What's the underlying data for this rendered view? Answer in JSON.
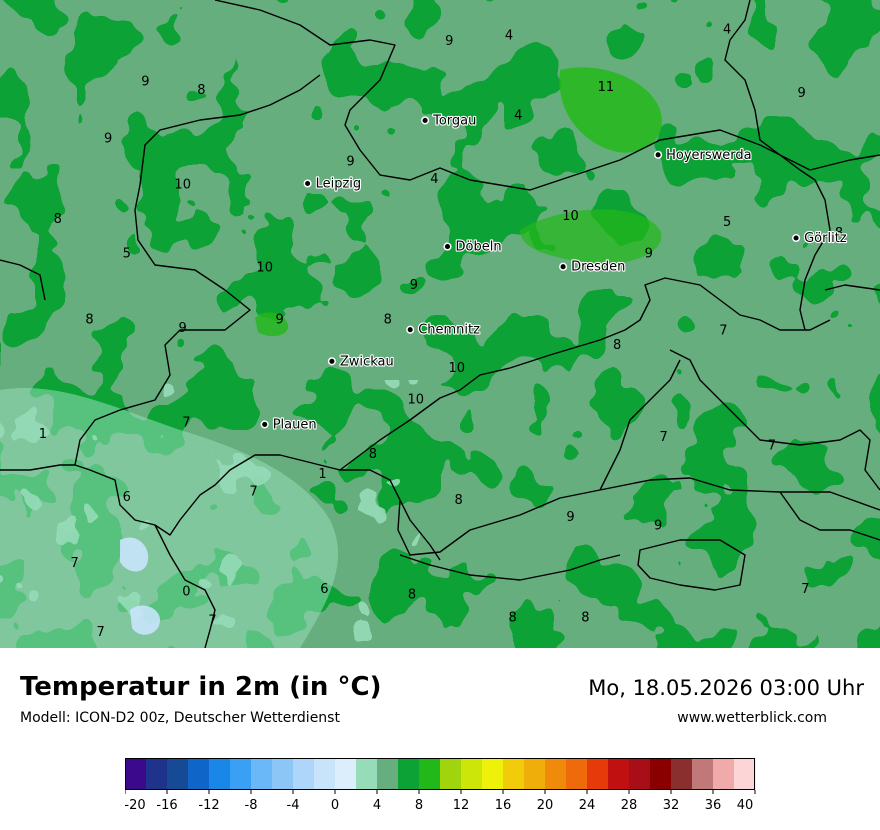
{
  "map": {
    "cities": [
      {
        "name": "Torgau",
        "lon": 13.0,
        "lat": 51.56
      },
      {
        "name": "Leipzig",
        "lon": 12.37,
        "lat": 51.34
      },
      {
        "name": "Hoyerswerda",
        "lon": 14.25,
        "lat": 51.44
      },
      {
        "name": "Görlitz",
        "lon": 14.99,
        "lat": 51.15
      },
      {
        "name": "Döbeln",
        "lon": 13.12,
        "lat": 51.12
      },
      {
        "name": "Dresden",
        "lon": 13.74,
        "lat": 51.05
      },
      {
        "name": "Chemnitz",
        "lon": 12.92,
        "lat": 50.83
      },
      {
        "name": "Zwickau",
        "lon": 12.5,
        "lat": 50.72
      },
      {
        "name": "Plauen",
        "lon": 12.14,
        "lat": 50.5
      }
    ],
    "temperature_labels": [
      {
        "value": "4",
        "lon": 13.45,
        "lat": 51.86
      },
      {
        "value": "9",
        "lon": 13.13,
        "lat": 51.84
      },
      {
        "value": "4",
        "lon": 14.62,
        "lat": 51.88
      },
      {
        "value": "9",
        "lon": 15.02,
        "lat": 51.66
      },
      {
        "value": "9",
        "lon": 11.5,
        "lat": 51.7
      },
      {
        "value": "8",
        "lon": 11.8,
        "lat": 51.67
      },
      {
        "value": "11",
        "lon": 13.97,
        "lat": 51.68
      },
      {
        "value": "4",
        "lon": 13.5,
        "lat": 51.58
      },
      {
        "value": "9",
        "lon": 11.3,
        "lat": 51.5
      },
      {
        "value": "9",
        "lon": 12.6,
        "lat": 51.42
      },
      {
        "value": "4",
        "lon": 13.05,
        "lat": 51.36
      },
      {
        "value": "10",
        "lon": 11.7,
        "lat": 51.34
      },
      {
        "value": "8",
        "lon": 11.03,
        "lat": 51.22
      },
      {
        "value": "10",
        "lon": 13.78,
        "lat": 51.23
      },
      {
        "value": "5",
        "lon": 14.62,
        "lat": 51.21
      },
      {
        "value": "8",
        "lon": 15.22,
        "lat": 51.17
      },
      {
        "value": "5",
        "lon": 11.4,
        "lat": 51.1
      },
      {
        "value": "9",
        "lon": 14.2,
        "lat": 51.1
      },
      {
        "value": "10",
        "lon": 12.14,
        "lat": 51.05
      },
      {
        "value": "9",
        "lon": 12.94,
        "lat": 50.99
      },
      {
        "value": "8",
        "lon": 11.2,
        "lat": 50.87
      },
      {
        "value": "9",
        "lon": 11.7,
        "lat": 50.84
      },
      {
        "value": "9",
        "lon": 12.22,
        "lat": 50.87
      },
      {
        "value": "8",
        "lon": 12.8,
        "lat": 50.87
      },
      {
        "value": "7",
        "lon": 14.6,
        "lat": 50.83
      },
      {
        "value": "8",
        "lon": 14.03,
        "lat": 50.78
      },
      {
        "value": "10",
        "lon": 13.17,
        "lat": 50.7
      },
      {
        "value": "10",
        "lon": 12.95,
        "lat": 50.59
      },
      {
        "value": "7",
        "lon": 11.72,
        "lat": 50.51
      },
      {
        "value": "1",
        "lon": 10.95,
        "lat": 50.47
      },
      {
        "value": "7",
        "lon": 14.28,
        "lat": 50.46
      },
      {
        "value": "7",
        "lon": 14.86,
        "lat": 50.43
      },
      {
        "value": "8",
        "lon": 12.72,
        "lat": 50.4
      },
      {
        "value": "1",
        "lon": 12.45,
        "lat": 50.33
      },
      {
        "value": "7",
        "lon": 12.08,
        "lat": 50.27
      },
      {
        "value": "6",
        "lon": 11.4,
        "lat": 50.25
      },
      {
        "value": "8",
        "lon": 13.18,
        "lat": 50.24
      },
      {
        "value": "9",
        "lon": 13.78,
        "lat": 50.18
      },
      {
        "value": "9",
        "lon": 14.25,
        "lat": 50.15
      },
      {
        "value": "7",
        "lon": 11.12,
        "lat": 50.02
      },
      {
        "value": "0",
        "lon": 11.72,
        "lat": 49.92
      },
      {
        "value": "6",
        "lon": 12.46,
        "lat": 49.93
      },
      {
        "value": "8",
        "lon": 12.93,
        "lat": 49.91
      },
      {
        "value": "7",
        "lon": 11.86,
        "lat": 49.82
      },
      {
        "value": "8",
        "lon": 13.47,
        "lat": 49.83
      },
      {
        "value": "8",
        "lon": 13.86,
        "lat": 49.83
      },
      {
        "value": "7",
        "lon": 15.04,
        "lat": 49.93
      },
      {
        "value": "7",
        "lon": 11.26,
        "lat": 49.78
      }
    ]
  },
  "footer": {
    "title": "Temperatur in 2m (in °C)",
    "model": "Modell: ICON-D2 00z, Deutscher Wetterdienst",
    "datetime": "Mo, 18.05.2026 03:00 Uhr",
    "website": "www.wetterblick.com"
  },
  "legend": {
    "ticks": [
      "-20",
      "-16",
      "-12",
      "-8",
      "-4",
      "0",
      "4",
      "8",
      "12",
      "16",
      "20",
      "24",
      "28",
      "32",
      "36",
      "40"
    ],
    "colors": [
      "#3b0a8c",
      "#20338c",
      "#174a94",
      "#1066c8",
      "#1a86e8",
      "#3aa0f4",
      "#6ab8f8",
      "#8cc6f7",
      "#aed6fa",
      "#c8e4fb",
      "#dcedfc",
      "#96dcb8",
      "#66ae7e",
      "#0ca236",
      "#23b81a",
      "#a0d40c",
      "#cce60a",
      "#eef20a",
      "#f0cc0a",
      "#f0ae0a",
      "#f08a0a",
      "#ee6a0a",
      "#e63a0a",
      "#c01010",
      "#a80e18",
      "#8a0000",
      "#8a2e2e",
      "#c07878",
      "#f0aaaa",
      "#fcd6d6"
    ]
  }
}
